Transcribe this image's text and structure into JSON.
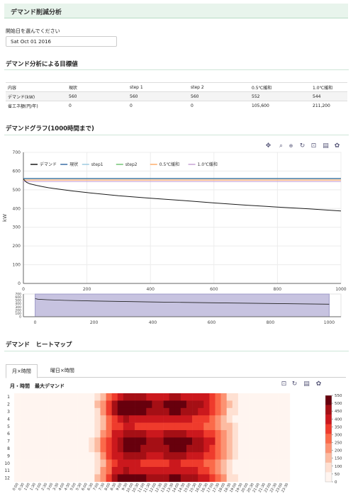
{
  "app": {
    "title": "デマンド削減分析"
  },
  "start_date": {
    "label": "開始日を選んでください",
    "value": "Sat Oct 01 2016"
  },
  "targets": {
    "heading": "デマンド分析による目標値",
    "columns": [
      "内容",
      "現状",
      "step 1",
      "step 2",
      "0.5℃緩和",
      "1.0℃緩和"
    ],
    "rows": [
      [
        "デマンド(kW)",
        "560",
        "560",
        "560",
        "552",
        "544"
      ],
      [
        "省エネ額(円/年)",
        "0",
        "0",
        "0",
        "105,600",
        "211,200"
      ]
    ]
  },
  "graph": {
    "heading": "デマンドグラフ(1000時間まで)",
    "toolbar": [
      "pan-icon",
      "zoom-icon",
      "wheel-zoom-icon",
      "reset-icon",
      "save-icon",
      "hover-icon",
      "bokeh-logo-icon"
    ]
  },
  "heatmap": {
    "heading": "デマンド　ヒートマップ",
    "tabs": [
      "月×時間",
      "曜日×時間"
    ],
    "active_tab": 0,
    "title": "月・時間　最大デマンド",
    "toolbar": [
      "save-icon",
      "reset-icon",
      "hover-icon",
      "bokeh-logo-icon"
    ],
    "colorbar_ticks": [
      "550",
      "500",
      "450",
      "400",
      "350",
      "300",
      "250",
      "200",
      "150",
      "100",
      "50",
      "0"
    ],
    "palette": [
      "#fff5f0",
      "#fee0d2",
      "#fcbba1",
      "#fc9272",
      "#fb6a4a",
      "#ef3b2c",
      "#cb181d",
      "#a50f15",
      "#67000d"
    ],
    "months": [
      "1",
      "2",
      "3",
      "4",
      "5",
      "6",
      "7",
      "8",
      "9",
      "10",
      "11",
      "12"
    ],
    "times": [
      "0:00",
      "0:30",
      "1:00",
      "1:30",
      "2:00",
      "2:30",
      "3:00",
      "3:30",
      "4:00",
      "4:30",
      "5:00",
      "5:30",
      "6:00",
      "6:30",
      "7:00",
      "7:30",
      "8:00",
      "8:30",
      "9:00",
      "9:30",
      "10:00",
      "10:30",
      "11:00",
      "11:30",
      "12:00",
      "12:30",
      "13:00",
      "13:30",
      "14:00",
      "14:30",
      "15:00",
      "15:30",
      "16:00",
      "16:30",
      "17:00",
      "17:30",
      "18:00",
      "18:30",
      "19:00",
      "19:30",
      "20:00",
      "20:30",
      "21:00",
      "21:30",
      "22:00",
      "22:30",
      "23:00",
      "23:30"
    ]
  },
  "chart_data": [
    {
      "type": "line",
      "xlabel": "",
      "ylabel": "kW",
      "xlim": [
        0,
        1000
      ],
      "ylim": [
        0,
        700
      ],
      "x_ticks": [
        0,
        200,
        400,
        600,
        800,
        1000
      ],
      "y_ticks": [
        0,
        100,
        200,
        300,
        400,
        500,
        600,
        700
      ],
      "legend": [
        "デマンド",
        "現状",
        "step1",
        "step2",
        "0.5℃緩和",
        "1.0℃緩和"
      ],
      "legend_position": "top-left",
      "series": [
        {
          "name": "デマンド",
          "color": "#1a1a1a",
          "x": [
            0,
            5,
            10,
            20,
            40,
            60,
            80,
            100,
            150,
            200,
            300,
            400,
            500,
            600,
            700,
            800,
            900,
            1000
          ],
          "y": [
            558,
            548,
            540,
            532,
            524,
            517,
            511,
            506,
            495,
            485,
            468,
            455,
            443,
            430,
            418,
            408,
            398,
            387
          ]
        },
        {
          "name": "現状",
          "color": "#3b6ea5",
          "x": [
            0,
            1000
          ],
          "y": [
            560,
            560
          ]
        },
        {
          "name": "step1",
          "color": "#9ecae1",
          "x": [
            0,
            1000
          ],
          "y": [
            560,
            560
          ]
        },
        {
          "name": "step2",
          "color": "#74c476",
          "x": [
            0,
            1000
          ],
          "y": [
            560,
            560
          ]
        },
        {
          "name": "0.5℃緩和",
          "color": "#fdae6b",
          "x": [
            0,
            1000
          ],
          "y": [
            552,
            552
          ]
        },
        {
          "name": "1.0℃緩和",
          "color": "#c7a3d6",
          "x": [
            0,
            1000
          ],
          "y": [
            544,
            544
          ]
        }
      ]
    },
    {
      "type": "line",
      "xlim": [
        -40,
        1040
      ],
      "ylim": [
        0,
        700
      ],
      "x_ticks": [
        0,
        200,
        400,
        600,
        800,
        1000
      ],
      "y_ticks": [
        0,
        100,
        200,
        300,
        400,
        500,
        600,
        700
      ],
      "range_selection": [
        0,
        1000
      ],
      "series": [
        {
          "name": "デマンド",
          "x": [
            0,
            10,
            40,
            100,
            200,
            400,
            600,
            800,
            1000
          ],
          "y": [
            558,
            540,
            524,
            506,
            485,
            455,
            430,
            408,
            387
          ]
        }
      ]
    },
    {
      "type": "heatmap",
      "x": "times",
      "y": "months",
      "value_range": [
        0,
        560
      ],
      "values": [
        [
          20,
          20,
          20,
          20,
          20,
          20,
          20,
          20,
          20,
          20,
          20,
          20,
          20,
          40,
          80,
          150,
          250,
          350,
          420,
          450,
          460,
          450,
          440,
          430,
          400,
          410,
          430,
          440,
          440,
          430,
          420,
          410,
          400,
          380,
          350,
          280,
          200,
          120,
          70,
          40,
          30,
          20,
          20,
          20,
          20,
          20,
          20,
          20
        ],
        [
          20,
          20,
          20,
          20,
          20,
          20,
          20,
          20,
          20,
          20,
          20,
          20,
          20,
          60,
          130,
          220,
          330,
          450,
          520,
          550,
          540,
          530,
          520,
          500,
          460,
          470,
          500,
          520,
          520,
          500,
          480,
          460,
          440,
          410,
          370,
          300,
          210,
          130,
          80,
          50,
          30,
          20,
          20,
          20,
          20,
          20,
          20,
          20
        ],
        [
          20,
          20,
          20,
          20,
          20,
          20,
          20,
          20,
          20,
          20,
          20,
          20,
          20,
          60,
          120,
          210,
          320,
          440,
          510,
          540,
          530,
          520,
          510,
          490,
          450,
          460,
          490,
          510,
          500,
          480,
          460,
          440,
          420,
          390,
          350,
          280,
          190,
          120,
          70,
          40,
          30,
          20,
          20,
          20,
          20,
          20,
          20,
          20
        ],
        [
          20,
          20,
          20,
          20,
          20,
          20,
          20,
          20,
          20,
          20,
          20,
          20,
          20,
          40,
          90,
          160,
          260,
          360,
          420,
          440,
          430,
          420,
          410,
          400,
          380,
          390,
          410,
          420,
          410,
          400,
          390,
          370,
          350,
          320,
          280,
          220,
          150,
          90,
          50,
          30,
          20,
          20,
          20,
          20,
          20,
          20,
          20,
          20
        ],
        [
          20,
          20,
          20,
          20,
          20,
          20,
          20,
          20,
          20,
          20,
          20,
          20,
          30,
          60,
          110,
          180,
          250,
          320,
          360,
          380,
          380,
          370,
          370,
          360,
          340,
          350,
          360,
          370,
          370,
          360,
          350,
          340,
          320,
          300,
          270,
          230,
          180,
          130,
          90,
          60,
          40,
          30,
          20,
          20,
          20,
          20,
          20,
          20
        ],
        [
          20,
          20,
          20,
          20,
          20,
          20,
          20,
          20,
          20,
          20,
          20,
          20,
          30,
          60,
          110,
          200,
          300,
          380,
          420,
          440,
          450,
          450,
          440,
          430,
          410,
          420,
          440,
          450,
          450,
          440,
          430,
          420,
          400,
          370,
          330,
          270,
          200,
          140,
          90,
          60,
          40,
          30,
          20,
          20,
          20,
          20,
          20,
          20
        ],
        [
          20,
          20,
          20,
          20,
          20,
          20,
          20,
          20,
          20,
          20,
          20,
          20,
          30,
          70,
          140,
          250,
          360,
          430,
          480,
          500,
          510,
          500,
          500,
          490,
          470,
          480,
          500,
          520,
          530,
          520,
          510,
          490,
          470,
          430,
          380,
          310,
          230,
          160,
          100,
          60,
          40,
          30,
          20,
          20,
          20,
          20,
          20,
          20
        ],
        [
          20,
          20,
          20,
          20,
          20,
          20,
          20,
          20,
          20,
          20,
          20,
          20,
          30,
          70,
          140,
          250,
          360,
          430,
          470,
          500,
          500,
          500,
          490,
          480,
          460,
          470,
          490,
          510,
          520,
          510,
          490,
          470,
          450,
          420,
          370,
          300,
          220,
          150,
          100,
          60,
          40,
          30,
          20,
          20,
          20,
          20,
          20,
          20
        ],
        [
          20,
          20,
          20,
          20,
          20,
          20,
          20,
          20,
          20,
          20,
          20,
          20,
          30,
          60,
          120,
          220,
          320,
          390,
          430,
          450,
          450,
          450,
          440,
          430,
          410,
          420,
          440,
          450,
          450,
          440,
          430,
          410,
          390,
          360,
          320,
          260,
          190,
          130,
          80,
          50,
          30,
          20,
          20,
          20,
          20,
          20,
          20,
          20
        ],
        [
          20,
          20,
          20,
          20,
          20,
          20,
          20,
          20,
          20,
          20,
          20,
          20,
          20,
          50,
          100,
          180,
          270,
          340,
          380,
          390,
          390,
          380,
          370,
          360,
          340,
          350,
          370,
          380,
          380,
          370,
          360,
          340,
          320,
          290,
          250,
          200,
          150,
          100,
          60,
          40,
          30,
          20,
          20,
          20,
          20,
          20,
          20,
          20
        ],
        [
          20,
          20,
          20,
          20,
          20,
          20,
          20,
          20,
          20,
          20,
          20,
          20,
          20,
          50,
          110,
          200,
          300,
          380,
          420,
          440,
          430,
          420,
          410,
          400,
          380,
          390,
          410,
          420,
          420,
          410,
          400,
          380,
          360,
          330,
          290,
          230,
          160,
          100,
          60,
          40,
          30,
          20,
          20,
          20,
          20,
          20,
          20,
          20
        ],
        [
          20,
          20,
          20,
          20,
          20,
          20,
          20,
          20,
          20,
          20,
          20,
          20,
          20,
          60,
          130,
          220,
          340,
          450,
          520,
          540,
          530,
          520,
          510,
          490,
          460,
          470,
          490,
          510,
          510,
          490,
          470,
          450,
          430,
          400,
          360,
          290,
          200,
          120,
          70,
          40,
          30,
          20,
          20,
          20,
          20,
          20,
          20,
          20
        ]
      ]
    }
  ]
}
